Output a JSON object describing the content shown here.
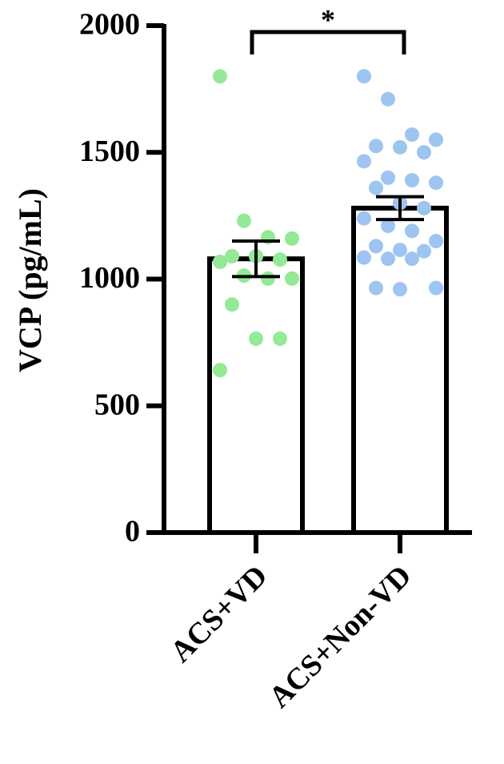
{
  "chart_data": {
    "type": "bar_scatter",
    "ylabel": "VCP (pg/mL)",
    "annotation": "*",
    "categories": [
      "ACS+VD",
      "ACS+Non-VD"
    ],
    "values": [
      1080,
      1280
    ],
    "errors": [
      70,
      45
    ],
    "colors": [
      "#93e996",
      "#9ec4f1"
    ],
    "points": [
      [
        1800,
        1230,
        1165,
        1160,
        1090,
        1090,
        1077,
        1068,
        1014,
        1002,
        1002,
        900,
        765,
        765,
        641
      ],
      [
        1800,
        1710,
        1570,
        1550,
        1525,
        1520,
        1500,
        1465,
        1400,
        1390,
        1380,
        1360,
        1300,
        1280,
        1240,
        1210,
        1190,
        1150,
        1130,
        1115,
        1110,
        1085,
        1080,
        1080,
        965,
        965,
        960
      ]
    ],
    "ylim": [
      0,
      2000
    ],
    "yticks": [
      0,
      500,
      1000,
      1500,
      2000
    ]
  }
}
